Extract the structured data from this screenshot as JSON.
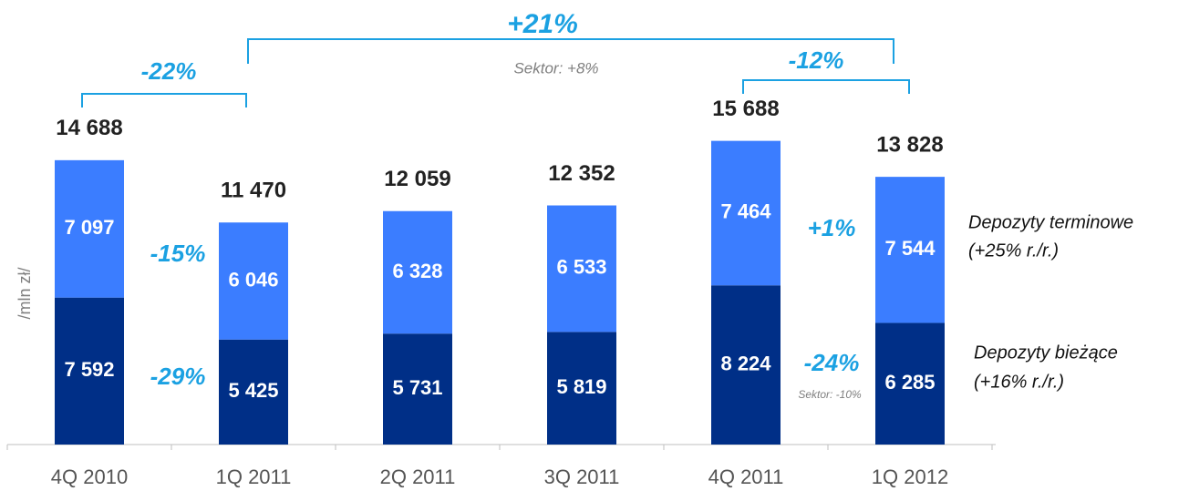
{
  "chart_data": {
    "type": "stacked-bar",
    "categories": [
      "4Q 2010",
      "1Q 2011",
      "2Q 2011",
      "3Q 2011",
      "4Q 2011",
      "1Q 2012"
    ],
    "y_label": "/mln zł/",
    "ylim": [
      0,
      20000
    ],
    "series": [
      {
        "name": "Depozyty bieżące",
        "note": "(+16%  r./r.)",
        "color": "#002f87",
        "values": [
          7592,
          5425,
          5731,
          5819,
          8224,
          6285
        ],
        "value_labels": [
          "7 592",
          "5 425",
          "5 731",
          "5 819",
          "8 224",
          "6 285"
        ]
      },
      {
        "name": "Depozyty terminowe",
        "note": "(+25% r./r.)",
        "color": "#3b7dff",
        "values": [
          7097,
          6046,
          6328,
          6533,
          7464,
          7544
        ],
        "value_labels": [
          "7 097",
          "6 046",
          "6 328",
          "6 533",
          "7 464",
          "7 544"
        ]
      }
    ],
    "totals": {
      "values": [
        14688,
        11470,
        12059,
        12352,
        15688,
        13828
      ],
      "value_labels": [
        "14 688",
        "11 470",
        "12 059",
        "12 352",
        "15 688",
        "13 828"
      ]
    },
    "annotations": [
      "+21%",
      "Sektor:  +8%",
      "-22%",
      "-12%",
      "-15%",
      "-29%",
      "+1%",
      "-24%",
      "Sektor: -10%"
    ]
  }
}
